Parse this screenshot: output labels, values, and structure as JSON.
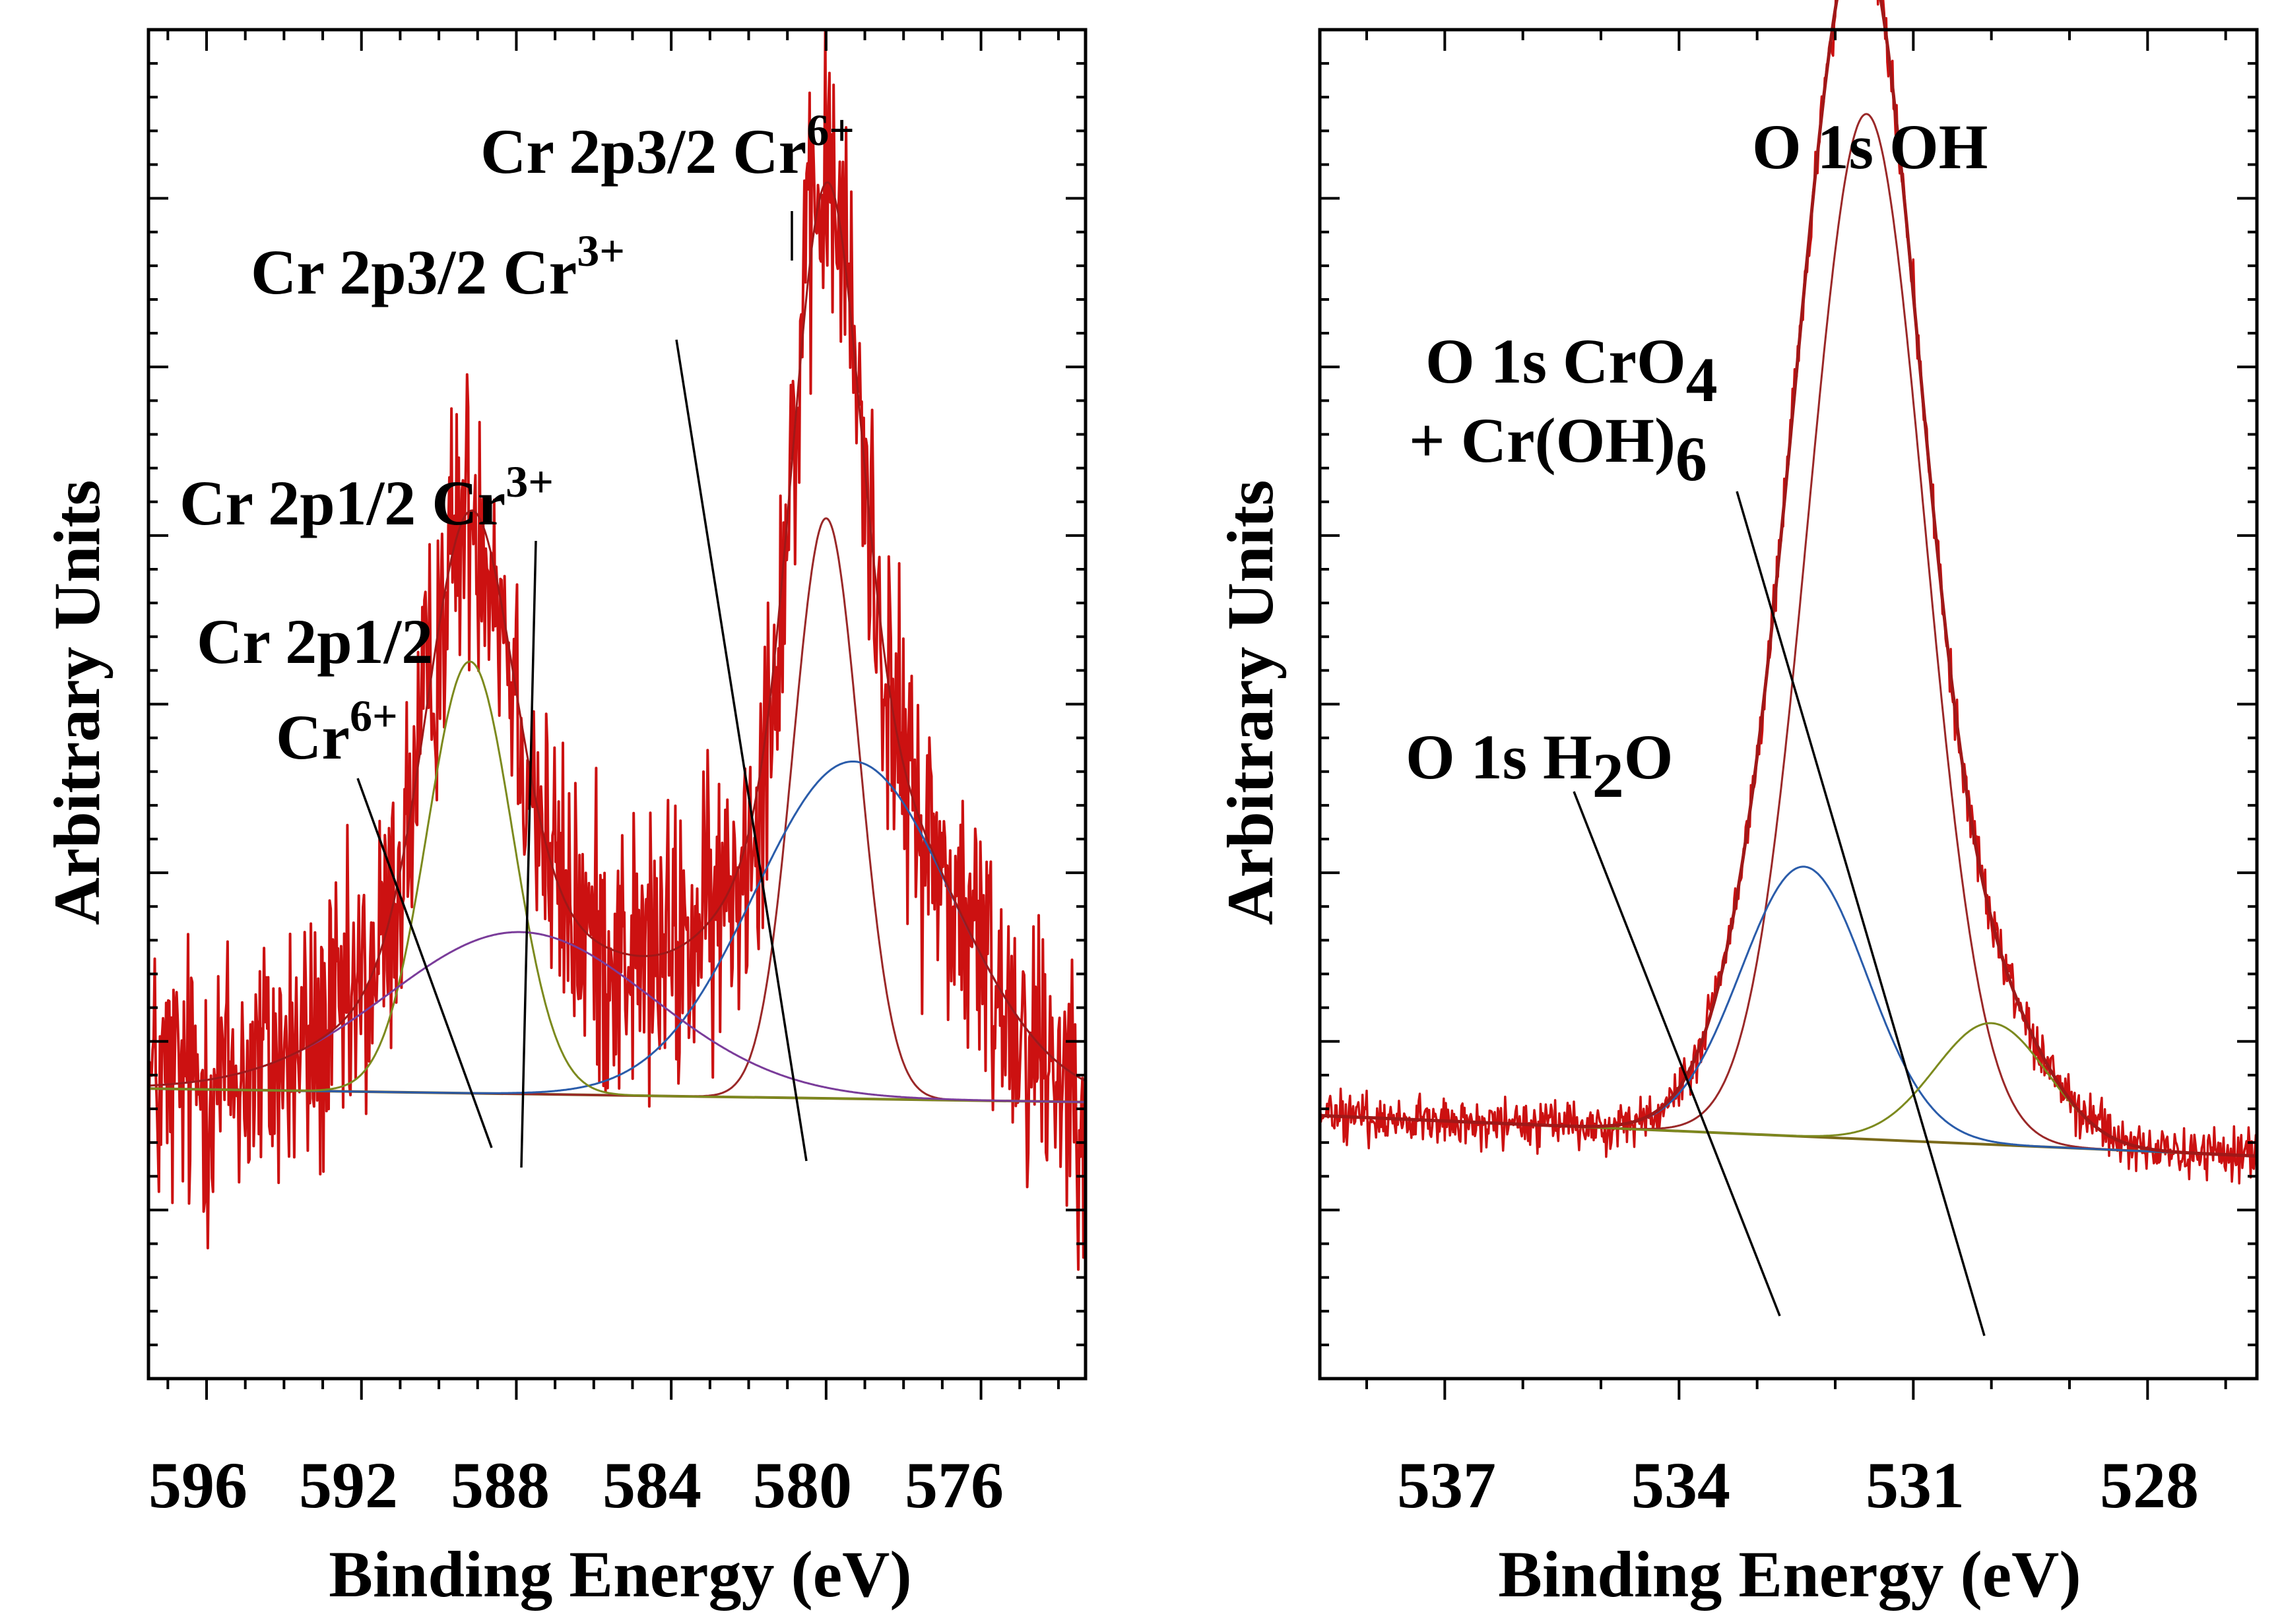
{
  "colors": {
    "raw_data": "#cc1111",
    "envelope": "#a01818",
    "component_main": "#9a2828",
    "component_blue": "#2a5caa",
    "component_olive": "#7c8a1e",
    "component_purple": "#7a3c9a",
    "baseline": "#7a6a1a"
  },
  "chart_data": [
    {
      "type": "line",
      "id": "cr2p",
      "xlabel": "Binding Energy (eV)",
      "ylabel": "Arbitrary Units",
      "xlim": [
        597.5,
        573.3
      ],
      "ylim": [
        0,
        100
      ],
      "x_reversed": true,
      "x_ticks": [
        596,
        592,
        588,
        584,
        580,
        576
      ],
      "x_tick_labels": [
        "596",
        "592",
        "588",
        "584",
        "580",
        "576"
      ],
      "baseline": {
        "x_start": 597.5,
        "y_start": 21.5,
        "x_end": 573.3,
        "y_end": 20.5
      },
      "components": [
        {
          "name": "Cr 2p3/2 Cr6+",
          "center": 580.0,
          "height": 43,
          "fwhm": 2.0,
          "color_key": "component_main"
        },
        {
          "name": "Cr 2p3/2 Cr3+",
          "center": 579.3,
          "height": 25,
          "fwhm": 6.0,
          "color_key": "component_blue"
        },
        {
          "name": "Cr 2p1/2 Cr6+",
          "center": 589.2,
          "height": 32,
          "fwhm": 2.6,
          "color_key": "component_olive"
        },
        {
          "name": "Cr 2p1/2 Cr3+",
          "center": 587.9,
          "height": 12,
          "fwhm": 8.0,
          "color_key": "component_purple"
        }
      ],
      "raw_noise_amplitude": 5.5,
      "annotations": [
        {
          "text": "Cr 2p3/2 Cr",
          "sup": "6+",
          "target_x": 580.0
        },
        {
          "text": "Cr 2p3/2 Cr",
          "sup": "3+",
          "target_x": 579.8
        },
        {
          "text": "Cr 2p1/2 Cr",
          "sup": "3+",
          "target_x": 587.9
        },
        {
          "text": "Cr 2p1/2",
          "line2": "Cr",
          "line2_sup": "6+",
          "target_x": 589.0
        }
      ]
    },
    {
      "type": "line",
      "id": "o1s",
      "xlabel": "Binding Energy (eV)",
      "ylabel": "Arbitrary Units",
      "xlim": [
        538.6,
        526.6
      ],
      "ylim": [
        0,
        100
      ],
      "x_reversed": true,
      "x_ticks": [
        537,
        534,
        531,
        528
      ],
      "x_tick_labels": [
        "537",
        "534",
        "531",
        "528"
      ],
      "baseline": {
        "x_start": 538.6,
        "y_start": 19.5,
        "x_end": 526.6,
        "y_end": 16.5
      },
      "components": [
        {
          "name": "O 1s OH",
          "center": 531.6,
          "height": 76,
          "fwhm": 1.75,
          "color_key": "component_main"
        },
        {
          "name": "O 1s H2O",
          "center": 532.4,
          "height": 20,
          "fwhm": 1.9,
          "color_key": "component_blue"
        },
        {
          "name": "O 1s CrO4 + Cr(OH)6",
          "center": 530.0,
          "height": 9,
          "fwhm": 1.7,
          "color_key": "component_olive"
        }
      ],
      "raw_noise_amplitude": 0.9,
      "annotations": [
        {
          "text": "O 1s OH"
        },
        {
          "text": "O 1s CrO",
          "sub": "4",
          "line2": "+ Cr(OH)",
          "line2_sub": "6",
          "target_x": 529.8
        },
        {
          "text": "O 1s H",
          "sub": "2",
          "text_after": "O",
          "target_x": 532.3
        }
      ]
    }
  ]
}
